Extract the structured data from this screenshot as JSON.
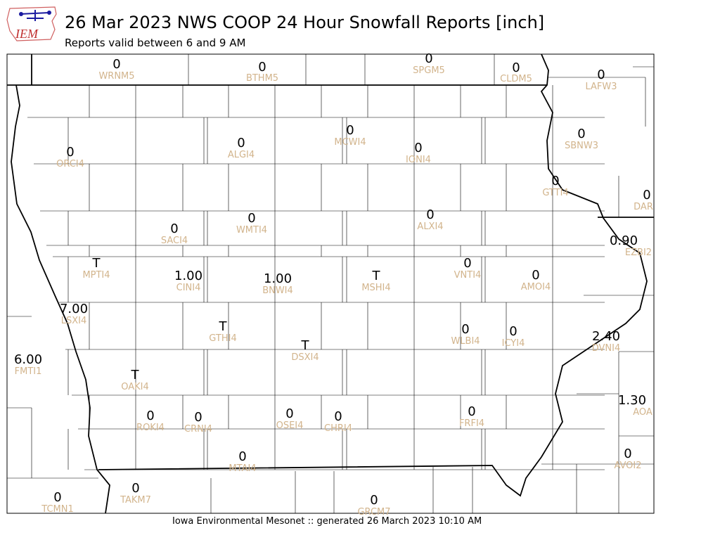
{
  "logo": "IEM",
  "title": "26 Mar 2023 NWS COOP 24 Hour Snowfall Reports [inch]",
  "subtitle": "Reports valid between 6 and 9 AM",
  "footer": "Iowa Environmental Mesonet :: generated 26 March 2023 10:10 AM",
  "stations": [
    {
      "value": "0",
      "id": "WRNM5"
    },
    {
      "value": "0",
      "id": "BTHM5"
    },
    {
      "value": "0",
      "id": "SPGM5"
    },
    {
      "value": "0",
      "id": "CLDM5"
    },
    {
      "value": "0",
      "id": "LAFW3"
    },
    {
      "value": "0",
      "id": "ORCI4"
    },
    {
      "value": "0",
      "id": "ALGI4"
    },
    {
      "value": "0",
      "id": "MCWI4"
    },
    {
      "value": "0",
      "id": "IONI4"
    },
    {
      "value": "0",
      "id": "SBNW3"
    },
    {
      "value": "0",
      "id": "GTTI4"
    },
    {
      "value": "0",
      "id": "DAR"
    },
    {
      "value": "0",
      "id": "ALXI4"
    },
    {
      "value": "0",
      "id": "SACI4"
    },
    {
      "value": "0",
      "id": "WMTI4"
    },
    {
      "value": "0.90",
      "id": "EZBI2"
    },
    {
      "value": "T",
      "id": "MPTI4"
    },
    {
      "value": "1.00",
      "id": "CINI4"
    },
    {
      "value": "1.00",
      "id": "BNWI4"
    },
    {
      "value": "T",
      "id": "MSHI4"
    },
    {
      "value": "0",
      "id": "VNTI4"
    },
    {
      "value": "0",
      "id": "AMOI4"
    },
    {
      "value": "7.00",
      "id": "LSXI4"
    },
    {
      "value": "T",
      "id": "GTHI4"
    },
    {
      "value": "0",
      "id": "WLBI4"
    },
    {
      "value": "0",
      "id": "ICYI4"
    },
    {
      "value": "2.40",
      "id": "DVNI4"
    },
    {
      "value": "6.00",
      "id": "FMTI1"
    },
    {
      "value": "T",
      "id": "DSXI4"
    },
    {
      "value": "T",
      "id": "OAKI4"
    },
    {
      "value": "1.30",
      "id": "AOA"
    },
    {
      "value": "0",
      "id": "ROKI4"
    },
    {
      "value": "0",
      "id": "CRNI4"
    },
    {
      "value": "0",
      "id": "OSEI4"
    },
    {
      "value": "0",
      "id": "CHRI4"
    },
    {
      "value": "0",
      "id": "FRFI4"
    },
    {
      "value": "0",
      "id": "AVOI2"
    },
    {
      "value": "0",
      "id": "MTAI4"
    },
    {
      "value": "0",
      "id": "TAKM7"
    },
    {
      "value": "0",
      "id": "TCMN1"
    },
    {
      "value": "0",
      "id": "GRCM7"
    }
  ]
}
